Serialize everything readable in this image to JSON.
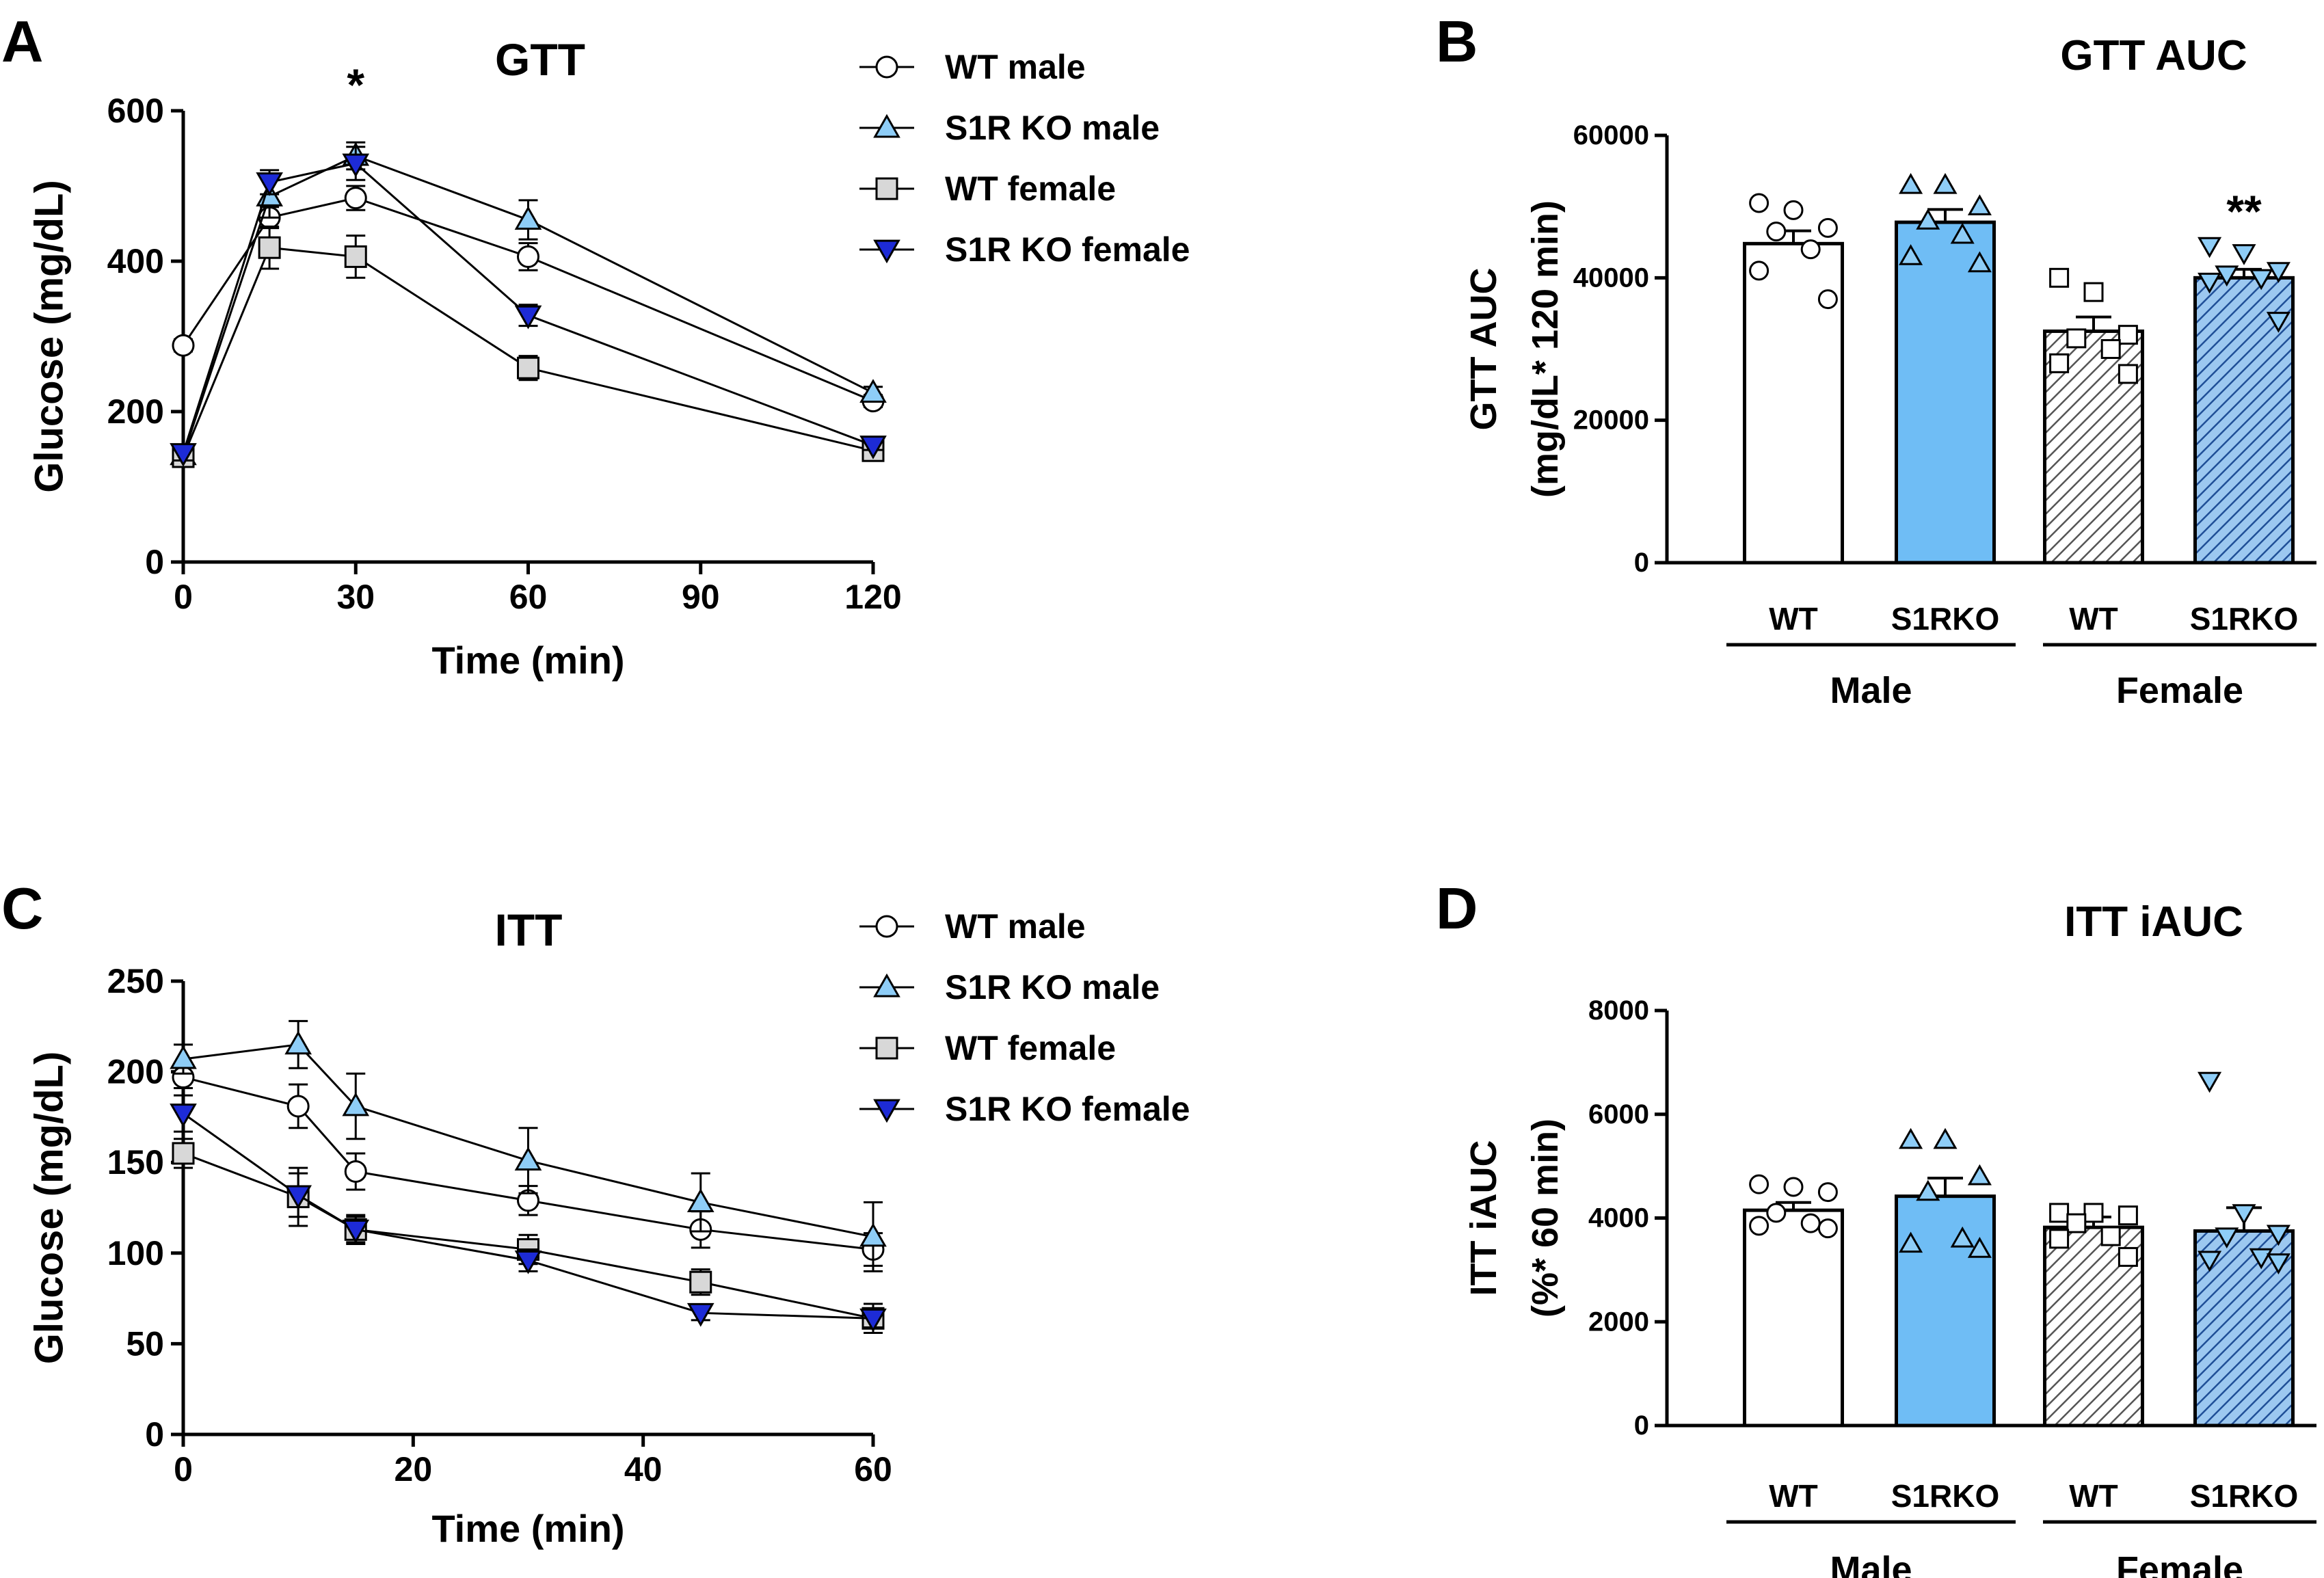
{
  "colors": {
    "wt_male": "#ffffff",
    "s1r_male": "#8ecdf7",
    "wt_female": "#d8d8d8",
    "s1r_female": "#1d2bd6",
    "bar_s1r_male": "#6fbdf5",
    "bar_s1r_female": "#4a88cc",
    "axis": "#000000"
  },
  "chart_data": [
    {
      "id": "A",
      "panel_label": "A",
      "type": "line",
      "title": "GTT",
      "xlabel": "Time (min)",
      "ylabel": "Glucose (mg/dL)",
      "xlim": [
        0,
        120
      ],
      "ylim": [
        0,
        600
      ],
      "xticks": [
        "0",
        "30",
        "60",
        "90",
        "120"
      ],
      "yticks": [
        "0",
        "200",
        "400",
        "600"
      ],
      "annotations": [
        {
          "text": "*",
          "x": 30,
          "y": 600
        }
      ],
      "legend": "top-right",
      "series": [
        {
          "name": "WT male",
          "marker": "circle",
          "x": [
            0,
            15,
            30,
            60,
            120
          ],
          "y": [
            288,
            458,
            484,
            406,
            214
          ],
          "err": [
            8,
            14,
            16,
            18,
            8
          ]
        },
        {
          "name": "S1R KO male",
          "marker": "triangle-up",
          "x": [
            0,
            15,
            30,
            60,
            120
          ],
          "y": [
            142,
            486,
            540,
            455,
            225
          ],
          "err": [
            10,
            28,
            18,
            26,
            8
          ]
        },
        {
          "name": "WT female",
          "marker": "square",
          "x": [
            0,
            15,
            30,
            60,
            120
          ],
          "y": [
            140,
            418,
            406,
            258,
            148
          ],
          "err": [
            10,
            28,
            28,
            16,
            6
          ]
        },
        {
          "name": "S1R KO female",
          "marker": "triangle-down",
          "x": [
            0,
            15,
            30,
            60,
            120
          ],
          "y": [
            145,
            505,
            530,
            328,
            155
          ],
          "err": [
            10,
            16,
            22,
            14,
            6
          ]
        }
      ]
    },
    {
      "id": "B",
      "panel_label": "B",
      "type": "bar",
      "title": "GTT AUC",
      "ylabel": [
        "GTT AUC",
        "(mg/dL* 120 min)"
      ],
      "ylim": [
        0,
        60000
      ],
      "yticks": [
        "0",
        "20000",
        "40000",
        "60000"
      ],
      "categories": [
        "WT",
        "S1RKO",
        "WT",
        "S1RKO"
      ],
      "groups": [
        "Male",
        "Female"
      ],
      "values": [
        44800,
        47800,
        32500,
        40000
      ],
      "err": [
        1800,
        1800,
        2000,
        1200
      ],
      "significance": [
        "",
        "",
        "",
        "**"
      ],
      "points": [
        [
          50500,
          49500,
          47000,
          46500,
          44000,
          41000,
          37000
        ],
        [
          53000,
          53000,
          50000,
          48000,
          46000,
          43000,
          42000
        ],
        [
          40000,
          38000,
          32000,
          31500,
          30000,
          28000,
          26500
        ],
        [
          44500,
          43500,
          41000,
          40500,
          40000,
          39500,
          34000
        ]
      ]
    },
    {
      "id": "C",
      "panel_label": "C",
      "type": "line",
      "title": "ITT",
      "xlabel": "Time (min)",
      "ylabel": "Glucose (mg/dL)",
      "xlim": [
        0,
        60
      ],
      "ylim": [
        0,
        250
      ],
      "xticks": [
        "0",
        "20",
        "40",
        "60"
      ],
      "yticks": [
        "0",
        "50",
        "100",
        "150",
        "200",
        "250"
      ],
      "legend": "top-right",
      "series": [
        {
          "name": "WT male",
          "marker": "circle",
          "x": [
            0,
            10,
            15,
            30,
            45,
            60
          ],
          "y": [
            197,
            181,
            145,
            129,
            113,
            102
          ],
          "err": [
            6,
            12,
            10,
            8,
            10,
            9
          ]
        },
        {
          "name": "S1R KO male",
          "marker": "triangle-up",
          "x": [
            0,
            10,
            15,
            30,
            45,
            60
          ],
          "y": [
            207,
            215,
            181,
            151,
            128,
            109
          ],
          "err": [
            8,
            13,
            18,
            18,
            16,
            19
          ]
        },
        {
          "name": "WT female",
          "marker": "square",
          "x": [
            0,
            10,
            15,
            30,
            45,
            60
          ],
          "y": [
            155,
            131,
            113,
            102,
            84,
            64
          ],
          "err": [
            8,
            16,
            8,
            8,
            7,
            8
          ]
        },
        {
          "name": "S1R KO female",
          "marker": "triangle-down",
          "x": [
            0,
            10,
            15,
            30,
            45,
            60
          ],
          "y": [
            177,
            132,
            113,
            96,
            67,
            64
          ],
          "err": [
            10,
            12,
            7,
            6,
            4,
            5
          ]
        }
      ]
    },
    {
      "id": "D",
      "panel_label": "D",
      "type": "bar",
      "title": "ITT iAUC",
      "ylabel": [
        "ITT iAUC",
        "(%* 60 min)"
      ],
      "ylim": [
        0,
        8000
      ],
      "yticks": [
        "0",
        "2000",
        "4000",
        "6000",
        "8000"
      ],
      "categories": [
        "WT",
        "S1RKO",
        "WT",
        "S1RKO"
      ],
      "groups": [
        "Male",
        "Female"
      ],
      "values": [
        4150,
        4420,
        3820,
        3750
      ],
      "err": [
        150,
        350,
        200,
        450
      ],
      "significance": [
        "",
        "",
        "",
        ""
      ],
      "points": [
        [
          4650,
          4600,
          4500,
          4100,
          3900,
          3850,
          3800
        ],
        [
          5500,
          5500,
          4800,
          4500,
          3600,
          3500,
          3400
        ],
        [
          4100,
          4100,
          4050,
          3900,
          3650,
          3600,
          3250
        ],
        [
          6650,
          4100,
          3700,
          3650,
          3250,
          3200,
          3150
        ]
      ]
    }
  ]
}
